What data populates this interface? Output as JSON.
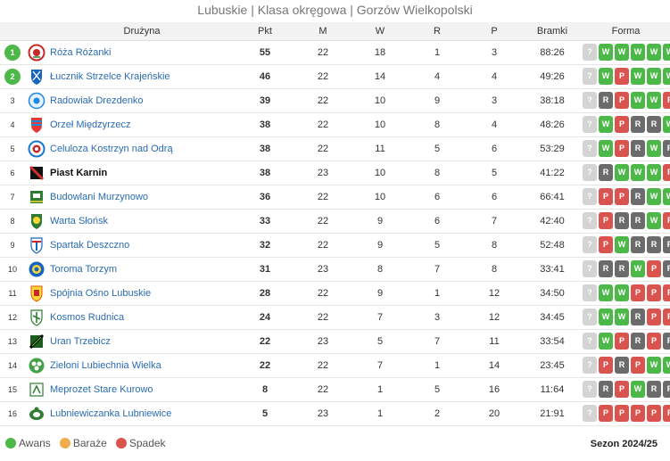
{
  "title": "Lubuskie | Klasa okręgowa | Gorzów Wielkopolski",
  "headers": {
    "team": "Drużyna",
    "pts": "Pkt",
    "m": "M",
    "w": "W",
    "r": "R",
    "p": "P",
    "goals": "Bramki",
    "form": "Forma"
  },
  "colors": {
    "promotion": "#4cb848",
    "playoff": "#f0ad4e",
    "relegation": "#d9534f",
    "win": "#4cb848",
    "loss": "#d9534f",
    "draw": "#6b6b6b",
    "unknown": "#d4d4d4",
    "link": "#2a6bb0"
  },
  "rows": [
    {
      "pos": "1",
      "zone": "promotion",
      "team": "Róża Różanki",
      "crest": "crest-roza",
      "pts": "55",
      "m": "22",
      "w": "18",
      "r": "1",
      "p": "3",
      "goals": "88:26",
      "form": [
        "?",
        "W",
        "W",
        "W",
        "W",
        "W"
      ],
      "bold": false
    },
    {
      "pos": "2",
      "zone": "promotion",
      "team": "Łucznik Strzelce Krajeńskie",
      "crest": "crest-lucznik",
      "pts": "46",
      "m": "22",
      "w": "14",
      "r": "4",
      "p": "4",
      "goals": "49:26",
      "form": [
        "?",
        "W",
        "P",
        "W",
        "W",
        "W"
      ],
      "bold": false
    },
    {
      "pos": "3",
      "zone": "",
      "team": "Radowiak Drezdenko",
      "crest": "crest-radowiak",
      "pts": "39",
      "m": "22",
      "w": "10",
      "r": "9",
      "p": "3",
      "goals": "38:18",
      "form": [
        "?",
        "R",
        "P",
        "W",
        "W",
        "P"
      ],
      "bold": false
    },
    {
      "pos": "4",
      "zone": "",
      "team": "Orzeł Międzyrzecz",
      "crest": "crest-orzel",
      "pts": "38",
      "m": "22",
      "w": "10",
      "r": "8",
      "p": "4",
      "goals": "48:26",
      "form": [
        "?",
        "W",
        "P",
        "R",
        "R",
        "W"
      ],
      "bold": false
    },
    {
      "pos": "5",
      "zone": "",
      "team": "Celuloza Kostrzyn nad Odrą",
      "crest": "crest-celuloza",
      "pts": "38",
      "m": "22",
      "w": "11",
      "r": "5",
      "p": "6",
      "goals": "53:29",
      "form": [
        "?",
        "W",
        "P",
        "R",
        "W",
        "R"
      ],
      "bold": false
    },
    {
      "pos": "6",
      "zone": "",
      "team": "Piast Karnin",
      "crest": "crest-piast",
      "pts": "38",
      "m": "23",
      "w": "10",
      "r": "8",
      "p": "5",
      "goals": "41:22",
      "form": [
        "?",
        "R",
        "W",
        "W",
        "W",
        "P"
      ],
      "bold": true
    },
    {
      "pos": "7",
      "zone": "",
      "team": "Budowlani Murzynowo",
      "crest": "crest-budowlani",
      "pts": "36",
      "m": "22",
      "w": "10",
      "r": "6",
      "p": "6",
      "goals": "66:41",
      "form": [
        "?",
        "P",
        "P",
        "R",
        "W",
        "W"
      ],
      "bold": false
    },
    {
      "pos": "8",
      "zone": "",
      "team": "Warta Słońsk",
      "crest": "crest-warta",
      "pts": "33",
      "m": "22",
      "w": "9",
      "r": "6",
      "p": "7",
      "goals": "42:40",
      "form": [
        "?",
        "P",
        "R",
        "R",
        "W",
        "P"
      ],
      "bold": false
    },
    {
      "pos": "9",
      "zone": "",
      "team": "Spartak Deszczno",
      "crest": "crest-spartak",
      "pts": "32",
      "m": "22",
      "w": "9",
      "r": "5",
      "p": "8",
      "goals": "52:48",
      "form": [
        "?",
        "P",
        "W",
        "R",
        "R",
        "R"
      ],
      "bold": false
    },
    {
      "pos": "10",
      "zone": "",
      "team": "Toroma Torzym",
      "crest": "crest-toroma",
      "pts": "31",
      "m": "23",
      "w": "8",
      "r": "7",
      "p": "8",
      "goals": "33:41",
      "form": [
        "?",
        "R",
        "R",
        "W",
        "P",
        "R"
      ],
      "bold": false
    },
    {
      "pos": "11",
      "zone": "",
      "team": "Spójnia Ośno Lubuskie",
      "crest": "crest-spojnia",
      "pts": "28",
      "m": "22",
      "w": "9",
      "r": "1",
      "p": "12",
      "goals": "34:50",
      "form": [
        "?",
        "W",
        "W",
        "P",
        "P",
        "P"
      ],
      "bold": false
    },
    {
      "pos": "12",
      "zone": "",
      "team": "Kosmos Rudnica",
      "crest": "crest-kosmos",
      "pts": "24",
      "m": "22",
      "w": "7",
      "r": "3",
      "p": "12",
      "goals": "34:45",
      "form": [
        "?",
        "W",
        "W",
        "R",
        "P",
        "P"
      ],
      "bold": false
    },
    {
      "pos": "13",
      "zone": "",
      "team": "Uran Trzebicz",
      "crest": "crest-uran",
      "pts": "22",
      "m": "23",
      "w": "5",
      "r": "7",
      "p": "11",
      "goals": "33:54",
      "form": [
        "?",
        "W",
        "P",
        "R",
        "P",
        "R"
      ],
      "bold": false
    },
    {
      "pos": "14",
      "zone": "",
      "team": "Zieloni Lubiechnia Wielka",
      "crest": "crest-zieloni",
      "pts": "22",
      "m": "22",
      "w": "7",
      "r": "1",
      "p": "14",
      "goals": "23:45",
      "form": [
        "?",
        "P",
        "R",
        "P",
        "W",
        "W"
      ],
      "bold": false
    },
    {
      "pos": "15",
      "zone": "",
      "team": "Meprozet Stare Kurowo",
      "crest": "crest-meprozet",
      "pts": "8",
      "m": "22",
      "w": "1",
      "r": "5",
      "p": "16",
      "goals": "11:64",
      "form": [
        "?",
        "R",
        "P",
        "W",
        "R",
        "R"
      ],
      "bold": false
    },
    {
      "pos": "16",
      "zone": "",
      "team": "Lubniewiczanka Lubniewice",
      "crest": "crest-lubniewiczanka",
      "pts": "5",
      "m": "23",
      "w": "1",
      "r": "2",
      "p": "20",
      "goals": "21:91",
      "form": [
        "?",
        "P",
        "P",
        "P",
        "P",
        "P"
      ],
      "bold": false
    }
  ],
  "legend": [
    {
      "label": "Awans",
      "color": "#4cb848"
    },
    {
      "label": "Baraże",
      "color": "#f0ad4e"
    },
    {
      "label": "Spadek",
      "color": "#d9534f"
    }
  ],
  "season": "Sezon 2024/25"
}
